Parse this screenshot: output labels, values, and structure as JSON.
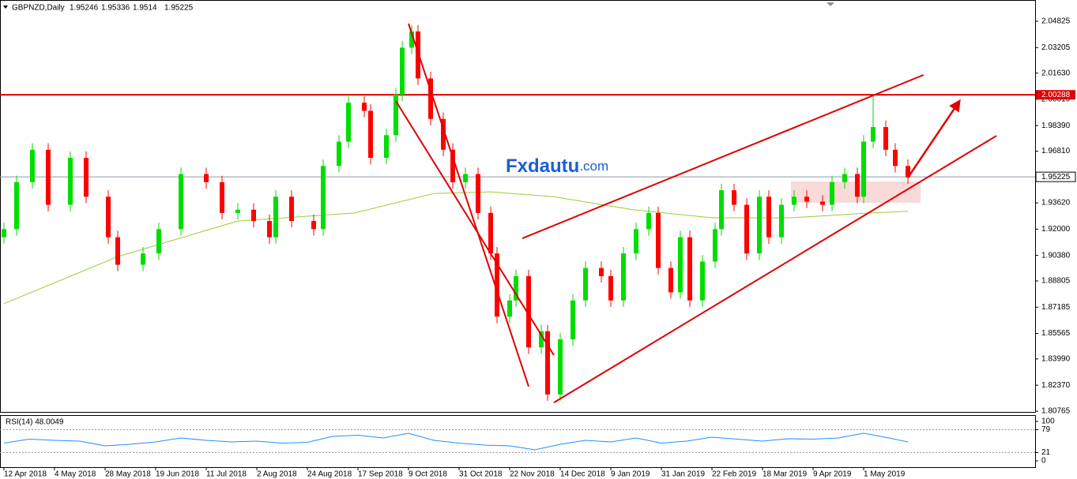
{
  "chart_data": {
    "type": "candlestick",
    "symbol": "GBPNZD,Daily",
    "ohlc": [
      1.95246,
      1.95336,
      1.9514,
      1.95225
    ],
    "logo": {
      "brand": "Fxdautu",
      "suffix": ".com"
    },
    "xlim": [
      -1.25,
      326.25
    ],
    "ylim": [
      1.8072,
      2.0614
    ],
    "xticks": [
      {
        "value": 0,
        "label": "12 Apr 2018"
      },
      {
        "value": 16,
        "label": "4 May 2018"
      },
      {
        "value": 32,
        "label": "28 May 2018"
      },
      {
        "value": 48,
        "label": "19 Jun 2018"
      },
      {
        "value": 64,
        "label": "11 Jul 2018"
      },
      {
        "value": 80,
        "label": "2 Aug 2018"
      },
      {
        "value": 96,
        "label": "24 Aug 2018"
      },
      {
        "value": 112,
        "label": "17 Sep 2018"
      },
      {
        "value": 128,
        "label": "9 Oct 2018"
      },
      {
        "value": 144,
        "label": "31 Oct 2018"
      },
      {
        "value": 160,
        "label": "22 Nov 2018"
      },
      {
        "value": 176,
        "label": "14 Dec 2018"
      },
      {
        "value": 192,
        "label": "9 Jan 2019"
      },
      {
        "value": 208,
        "label": "31 Jan 2019"
      },
      {
        "value": 224,
        "label": "22 Feb 2019"
      },
      {
        "value": 240,
        "label": "18 Mar 2019"
      },
      {
        "value": 256,
        "label": "9 Apr 2019"
      },
      {
        "value": 272,
        "label": "1 May 2019"
      }
    ],
    "yticks": [
      {
        "value": 2.04825,
        "label": "2.04825"
      },
      {
        "value": 2.03205,
        "label": "2.03205"
      },
      {
        "value": 2.0163,
        "label": "2.01630"
      },
      {
        "value": 2.0001,
        "label": "2.00010"
      },
      {
        "value": 1.9839,
        "label": "1.98390"
      },
      {
        "value": 1.9681,
        "label": "1.96810"
      },
      {
        "value": 1.9362,
        "label": "1.93620"
      },
      {
        "value": 1.92,
        "label": "1.92000"
      },
      {
        "value": 1.9038,
        "label": "1.90380"
      },
      {
        "value": 1.88805,
        "label": "1.88805"
      },
      {
        "value": 1.87185,
        "label": "1.87185"
      },
      {
        "value": 1.85565,
        "label": "1.85565"
      },
      {
        "value": 1.8399,
        "label": "1.83990"
      },
      {
        "value": 1.8237,
        "label": "1.82370"
      },
      {
        "value": 1.80765,
        "label": "1.80765"
      }
    ],
    "bull_color": "#00dd00",
    "bear_color": "#ff0000",
    "candles": [
      [
        0,
        1.915,
        1.924,
        1.911,
        1.92
      ],
      [
        4,
        1.92,
        1.953,
        1.916,
        1.949
      ],
      [
        9,
        1.949,
        1.973,
        1.945,
        1.969
      ],
      [
        14,
        1.969,
        1.973,
        1.931,
        1.935
      ],
      [
        21,
        1.935,
        1.968,
        1.931,
        1.964
      ],
      [
        26,
        1.964,
        1.968,
        1.936,
        1.94
      ],
      [
        33,
        1.94,
        1.944,
        1.911,
        1.915
      ],
      [
        36,
        1.915,
        1.919,
        1.894,
        1.898
      ],
      [
        44,
        1.898,
        1.909,
        1.894,
        1.905
      ],
      [
        49,
        1.905,
        1.924,
        1.901,
        1.92
      ],
      [
        56,
        1.92,
        1.958,
        1.916,
        1.954
      ],
      [
        64,
        1.954,
        1.958,
        1.945,
        1.949
      ],
      [
        69,
        1.949,
        1.953,
        1.926,
        1.93
      ],
      [
        74,
        1.93,
        1.936,
        1.926,
        1.932
      ],
      [
        79,
        1.932,
        1.936,
        1.921,
        1.925
      ],
      [
        84,
        1.925,
        1.929,
        1.911,
        1.915
      ],
      [
        86,
        1.915,
        1.944,
        1.911,
        1.94
      ],
      [
        91,
        1.94,
        1.944,
        1.921,
        1.925
      ],
      [
        98,
        1.925,
        1.929,
        1.916,
        1.92
      ],
      [
        101,
        1.92,
        1.963,
        1.916,
        1.959
      ],
      [
        106,
        1.959,
        1.978,
        1.955,
        1.974
      ],
      [
        109,
        1.974,
        2.002,
        1.97,
        1.998
      ],
      [
        114,
        1.998,
        2.002,
        1.989,
        1.993
      ],
      [
        116,
        1.993,
        1.997,
        1.96,
        1.964
      ],
      [
        121,
        1.964,
        1.982,
        1.96,
        1.978
      ],
      [
        124,
        1.978,
        2.007,
        1.974,
        2.003
      ],
      [
        126,
        2.003,
        2.036,
        1.999,
        2.032
      ],
      [
        129,
        2.032,
        2.046,
        2.028,
        2.042
      ],
      [
        131,
        2.042,
        2.046,
        2.009,
        2.013
      ],
      [
        135,
        2.013,
        2.017,
        1.984,
        1.988
      ],
      [
        139,
        1.988,
        1.992,
        1.965,
        1.969
      ],
      [
        142,
        1.969,
        1.973,
        1.945,
        1.949
      ],
      [
        146,
        1.949,
        1.958,
        1.945,
        1.954
      ],
      [
        150,
        1.954,
        1.958,
        1.926,
        1.93
      ],
      [
        154,
        1.93,
        1.934,
        1.901,
        1.905
      ],
      [
        156,
        1.905,
        1.909,
        1.862,
        1.866
      ],
      [
        160,
        1.866,
        1.88,
        1.862,
        1.876
      ],
      [
        162,
        1.876,
        1.895,
        1.872,
        1.891
      ],
      [
        166,
        1.891,
        1.895,
        1.843,
        1.847
      ],
      [
        170,
        1.847,
        1.861,
        1.843,
        1.857
      ],
      [
        172,
        1.857,
        1.861,
        1.814,
        1.818
      ],
      [
        176,
        1.818,
        1.856,
        1.814,
        1.852
      ],
      [
        180,
        1.852,
        1.88,
        1.848,
        1.876
      ],
      [
        184,
        1.876,
        1.9,
        1.872,
        1.896
      ],
      [
        189,
        1.896,
        1.9,
        1.887,
        1.891
      ],
      [
        192,
        1.891,
        1.895,
        1.872,
        1.876
      ],
      [
        196,
        1.876,
        1.909,
        1.872,
        1.905
      ],
      [
        200,
        1.905,
        1.924,
        1.901,
        1.92
      ],
      [
        204,
        1.92,
        1.934,
        1.916,
        1.93
      ],
      [
        207,
        1.93,
        1.934,
        1.892,
        1.896
      ],
      [
        211,
        1.896,
        1.9,
        1.877,
        1.881
      ],
      [
        214,
        1.881,
        1.919,
        1.877,
        1.915
      ],
      [
        217,
        1.915,
        1.919,
        1.872,
        1.876
      ],
      [
        221,
        1.876,
        1.904,
        1.872,
        1.9
      ],
      [
        225,
        1.9,
        1.924,
        1.896,
        1.92
      ],
      [
        227,
        1.92,
        1.948,
        1.916,
        1.944
      ],
      [
        231,
        1.944,
        1.948,
        1.931,
        1.935
      ],
      [
        235,
        1.935,
        1.939,
        1.901,
        1.905
      ],
      [
        239,
        1.905,
        1.944,
        1.901,
        1.94
      ],
      [
        242,
        1.94,
        1.944,
        1.911,
        1.915
      ],
      [
        246,
        1.915,
        1.939,
        1.911,
        1.935
      ],
      [
        250,
        1.935,
        1.944,
        1.931,
        1.94
      ],
      [
        254,
        1.94,
        1.944,
        1.933,
        1.937
      ],
      [
        259,
        1.937,
        1.941,
        1.931,
        1.935
      ],
      [
        262,
        1.935,
        1.953,
        1.931,
        1.949
      ],
      [
        266,
        1.949,
        1.958,
        1.945,
        1.954
      ],
      [
        270,
        1.954,
        1.958,
        1.936,
        1.94
      ],
      [
        272,
        1.94,
        1.978,
        1.936,
        1.974
      ],
      [
        275,
        1.974,
        2.003,
        1.97,
        1.983
      ],
      [
        279,
        1.983,
        1.987,
        1.965,
        1.969
      ],
      [
        282,
        1.969,
        1.973,
        1.955,
        1.959
      ],
      [
        286,
        1.959,
        1.963,
        1.948,
        1.952
      ]
    ],
    "moving_average": {
      "color": "#9acd32",
      "x": [
        0,
        36,
        74,
        111,
        136,
        154,
        174,
        199,
        224,
        249,
        274,
        286
      ],
      "values": [
        1.874,
        1.903,
        1.925,
        1.93,
        1.942,
        1.943,
        1.94,
        1.932,
        1.927,
        1.927,
        1.93,
        1.931
      ]
    },
    "resistance": {
      "value": 2.00288,
      "label": "2.00288",
      "color": "#e00000"
    },
    "current_price": {
      "value": 1.95225,
      "label": "1.95225"
    },
    "trendlines": [
      {
        "x1": 128,
        "y1": 2.0468,
        "x2": 166,
        "y2": 1.8229
      },
      {
        "x1": 124,
        "y1": 1.999,
        "x2": 174,
        "y2": 1.8422
      },
      {
        "x1": 164,
        "y1": 1.9143,
        "x2": 291,
        "y2": 2.0152
      },
      {
        "x1": 174,
        "y1": 1.813,
        "x2": 314,
        "y2": 1.9776
      }
    ],
    "arrow": {
      "x1": 286,
      "y1": 1.9518,
      "x2": 302,
      "y2": 1.9981
    },
    "zone": {
      "x1": 249,
      "x2": 290,
      "top": 1.9494,
      "bottom": 1.9363
    },
    "rsi": {
      "label": "RSI(14) 48.0049",
      "color": "#1e90ff",
      "ylim": [
        0,
        100
      ],
      "yticks": [
        100,
        79,
        21,
        0
      ],
      "levels": [
        79,
        21
      ],
      "x": [
        0,
        8,
        16,
        24,
        32,
        40,
        48,
        56,
        64,
        72,
        80,
        88,
        96,
        104,
        112,
        120,
        128,
        136,
        144,
        152,
        160,
        168,
        176,
        184,
        192,
        200,
        208,
        216,
        224,
        232,
        240,
        248,
        256,
        264,
        272,
        280,
        286
      ],
      "values": [
        45,
        55,
        52,
        50,
        38,
        42,
        48,
        58,
        52,
        48,
        50,
        45,
        47,
        62,
        65,
        58,
        70,
        52,
        45,
        40,
        38,
        28,
        42,
        52,
        48,
        58,
        45,
        50,
        60,
        55,
        50,
        56,
        55,
        58,
        70,
        58,
        48
      ]
    }
  }
}
